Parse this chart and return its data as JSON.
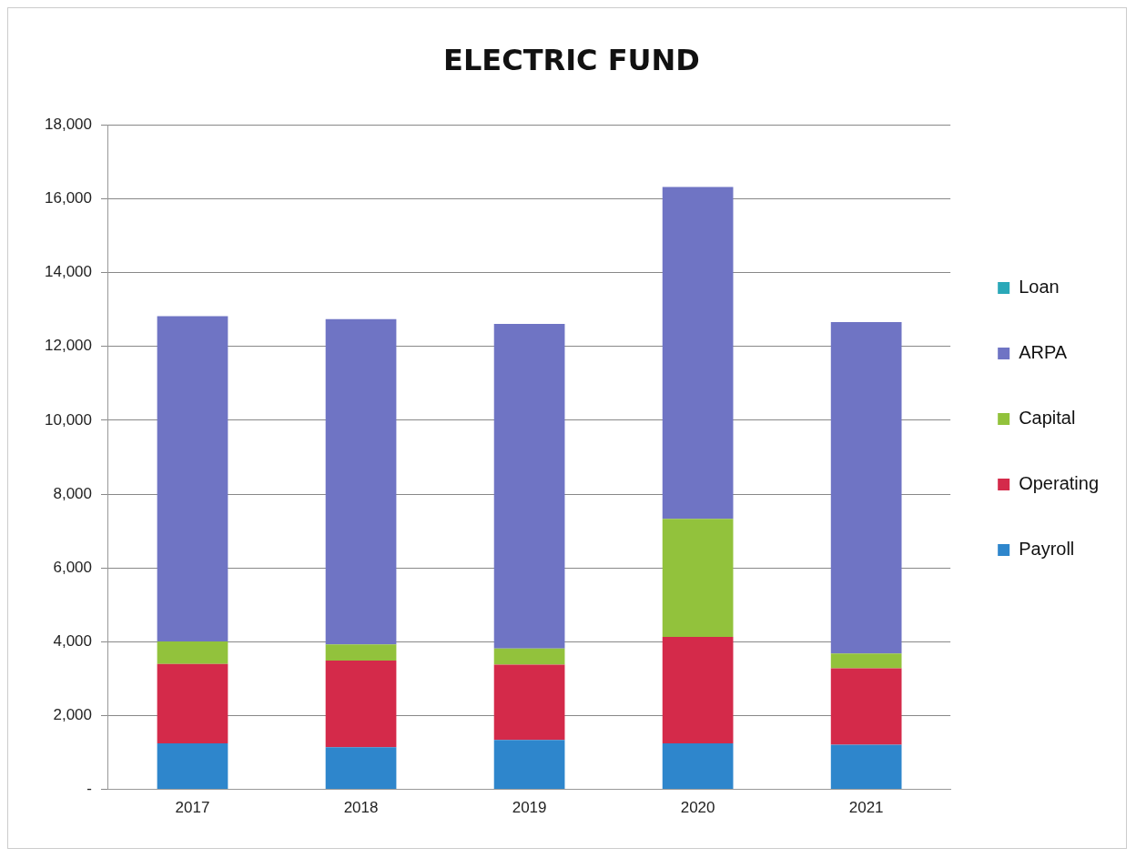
{
  "chart_data": {
    "type": "bar",
    "title": "ELECTRIC FUND",
    "stacked": true,
    "categories": [
      "2017",
      "2018",
      "2019",
      "2020",
      "2021"
    ],
    "series": [
      {
        "name": "Payroll",
        "color": "#2e86cc",
        "values": [
          1250,
          1140,
          1340,
          1250,
          1210
        ]
      },
      {
        "name": "Operating",
        "color": "#d42a4a",
        "values": [
          2150,
          2350,
          2040,
          2880,
          2070
        ]
      },
      {
        "name": "Capital",
        "color": "#92c23c",
        "values": [
          610,
          440,
          440,
          3200,
          400
        ]
      },
      {
        "name": "ARPA",
        "color": "#6f74c4",
        "values": [
          8810,
          8810,
          8790,
          8990,
          8980
        ]
      },
      {
        "name": "Loan",
        "color": "#2aa8b8",
        "values": [
          0,
          0,
          0,
          0,
          0
        ]
      }
    ],
    "ylim": [
      0,
      18000
    ],
    "yticks": [
      {
        "value": 0,
        "label": "-"
      },
      {
        "value": 2000,
        "label": "2,000"
      },
      {
        "value": 4000,
        "label": "4,000"
      },
      {
        "value": 6000,
        "label": "6,000"
      },
      {
        "value": 8000,
        "label": "8,000"
      },
      {
        "value": 10000,
        "label": "10,000"
      },
      {
        "value": 12000,
        "label": "12,000"
      },
      {
        "value": 14000,
        "label": "14,000"
      },
      {
        "value": 16000,
        "label": "16,000"
      },
      {
        "value": 18000,
        "label": "18,000"
      }
    ],
    "grid": "y",
    "legend": "right"
  }
}
